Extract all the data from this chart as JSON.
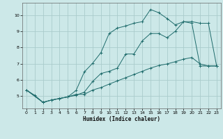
{
  "xlabel": "Humidex (Indice chaleur)",
  "background_color": "#cce8e8",
  "grid_color": "#aacccc",
  "line_color": "#1e6b6b",
  "xlim": [
    -0.5,
    23.5
  ],
  "ylim": [
    4.2,
    10.8
  ],
  "yticks": [
    5,
    6,
    7,
    8,
    9,
    10
  ],
  "xticks": [
    0,
    1,
    2,
    3,
    4,
    5,
    6,
    7,
    8,
    9,
    10,
    11,
    12,
    13,
    14,
    15,
    16,
    17,
    18,
    19,
    20,
    21,
    22,
    23
  ],
  "line1_x": [
    0,
    1,
    2,
    3,
    4,
    5,
    6,
    7,
    8,
    9,
    10,
    11,
    12,
    13,
    14,
    15,
    16,
    17,
    18,
    19,
    20,
    21,
    22,
    23
  ],
  "line1_y": [
    5.35,
    5.02,
    4.58,
    4.72,
    4.82,
    4.92,
    5.02,
    5.22,
    5.88,
    6.38,
    6.52,
    6.72,
    7.6,
    7.6,
    8.42,
    8.88,
    8.88,
    8.62,
    9.02,
    9.62,
    9.52,
    6.85,
    6.85,
    6.85
  ],
  "line2_x": [
    0,
    2,
    3,
    4,
    5,
    6,
    7,
    8,
    9,
    10,
    11,
    12,
    13,
    14,
    15,
    16,
    17,
    18,
    19,
    20,
    21,
    22,
    23
  ],
  "line2_y": [
    5.35,
    4.58,
    4.72,
    4.82,
    4.92,
    5.08,
    5.08,
    5.35,
    5.5,
    5.72,
    5.92,
    6.12,
    6.32,
    6.52,
    6.72,
    6.88,
    6.98,
    7.12,
    7.28,
    7.38,
    6.98,
    6.85,
    6.85
  ],
  "line3_x": [
    0,
    2,
    3,
    4,
    5,
    6,
    7,
    8,
    9,
    10,
    11,
    12,
    13,
    14,
    15,
    16,
    17,
    18,
    19,
    20,
    21,
    22,
    23
  ],
  "line3_y": [
    5.35,
    4.58,
    4.72,
    4.82,
    4.92,
    5.32,
    6.48,
    7.02,
    7.68,
    8.88,
    9.22,
    9.35,
    9.52,
    9.62,
    10.38,
    10.18,
    9.82,
    9.42,
    9.62,
    9.62,
    9.52,
    9.52,
    6.85
  ]
}
